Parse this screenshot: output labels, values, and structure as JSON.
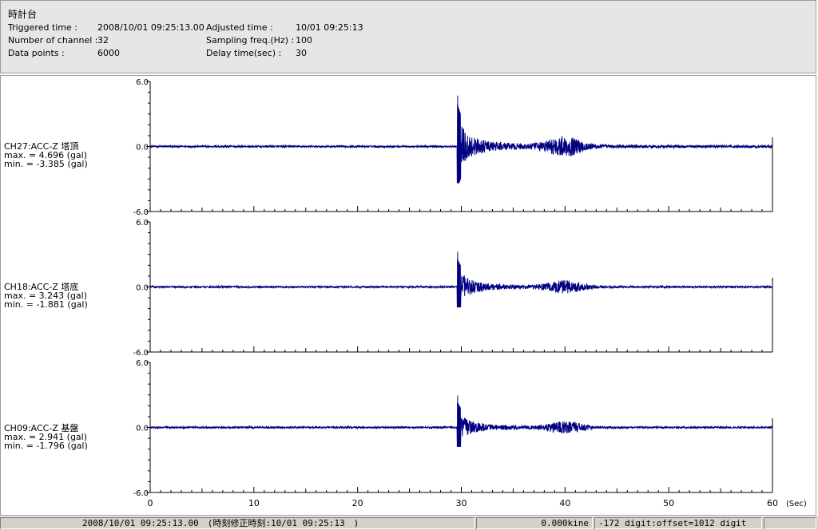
{
  "header": {
    "title": "時計台",
    "fields": [
      {
        "label": "Triggered time :",
        "value": "2008/10/01 09:25:13.00"
      },
      {
        "label": "Number of channel :",
        "value": "32"
      },
      {
        "label": "Data points :",
        "value": "6000"
      },
      {
        "label": "Adjusted time :",
        "value": "10/01 09:25:13"
      },
      {
        "label": "Sampling freq.(Hz) :",
        "value": "100"
      },
      {
        "label": "Delay time(sec) :",
        "value": "30"
      }
    ]
  },
  "chart_data": {
    "type": "line",
    "x_unit": "(Sec)",
    "xlim": [
      0,
      60
    ],
    "x_ticks": [
      "0",
      "10",
      "20",
      "30",
      "40",
      "50",
      "60"
    ],
    "ylim": [
      -6.0,
      6.0
    ],
    "y_ticks": [
      "6.0",
      "0.0",
      "-6.0"
    ],
    "colors": {
      "trace": "#000080"
    },
    "series": [
      {
        "name": "CH27:ACC-Z 塔頂",
        "max_text": "max. = 4.696 (gal)",
        "min_text": "min. = -3.385 (gal)",
        "max": 4.696,
        "min": -3.385,
        "onset": 29.6,
        "scale": 1.0
      },
      {
        "name": "CH18:ACC-Z 塔底",
        "max_text": "max. = 3.243 (gal)",
        "min_text": "min. = -1.881 (gal)",
        "max": 3.243,
        "min": -1.881,
        "onset": 29.6,
        "scale": 0.66
      },
      {
        "name": "CH09:ACC-Z 基盤",
        "max_text": "max. = 2.941 (gal)",
        "min_text": "min. = -1.796 (gal)",
        "max": 2.941,
        "min": -1.796,
        "onset": 29.6,
        "scale": 0.6
      }
    ]
  },
  "status": {
    "time": "2008/10/01 09:25:13.00　(時刻修正時刻:10/01 09:25:13　)",
    "velocity": "0.000kine",
    "digit": "-172 digit:offset=1012 digit",
    "extra": ""
  }
}
